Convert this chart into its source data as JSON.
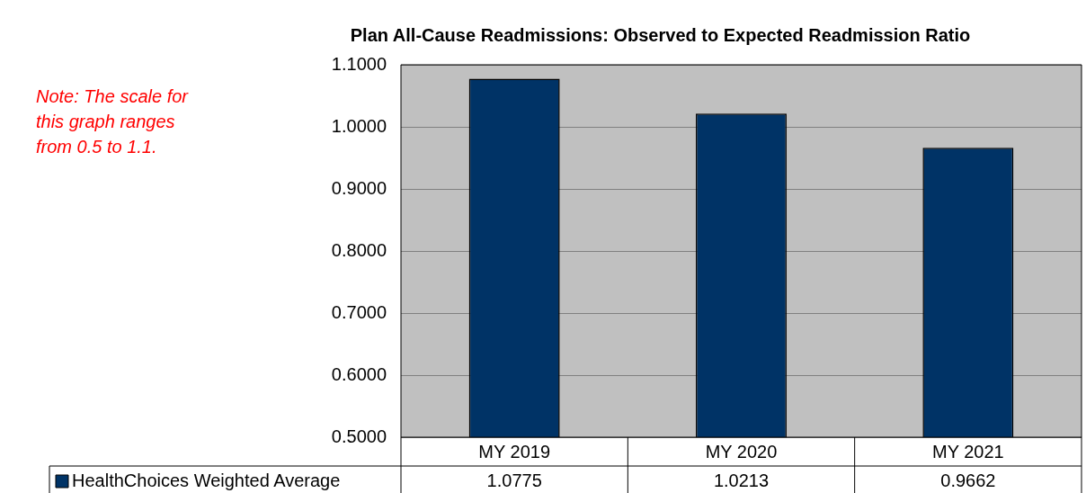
{
  "chart_data": {
    "type": "bar",
    "title": "Plan All-Cause Readmissions: Observed to Expected Readmission Ratio",
    "categories": [
      "MY 2019",
      "MY 2020",
      "MY 2021"
    ],
    "series": [
      {
        "name": "HealthChoices Weighted Average",
        "color": "#003366",
        "values": [
          1.0775,
          1.0213,
          0.9662
        ]
      }
    ],
    "ylim": [
      0.5,
      1.1
    ],
    "yticks": [
      {
        "value": 0.5,
        "label": "0.5000"
      },
      {
        "value": 0.6,
        "label": "0.6000"
      },
      {
        "value": 0.7,
        "label": "0.7000"
      },
      {
        "value": 0.8,
        "label": "0.8000"
      },
      {
        "value": 0.9,
        "label": "0.9000"
      },
      {
        "value": 1.0,
        "label": "1.0000"
      },
      {
        "value": 1.1,
        "label": "1.1000"
      }
    ],
    "grid": "y",
    "legend": "bottom",
    "data_labels": true,
    "annotations": [
      "Note: The scale for this graph ranges from 0.5 to 1.1."
    ]
  }
}
